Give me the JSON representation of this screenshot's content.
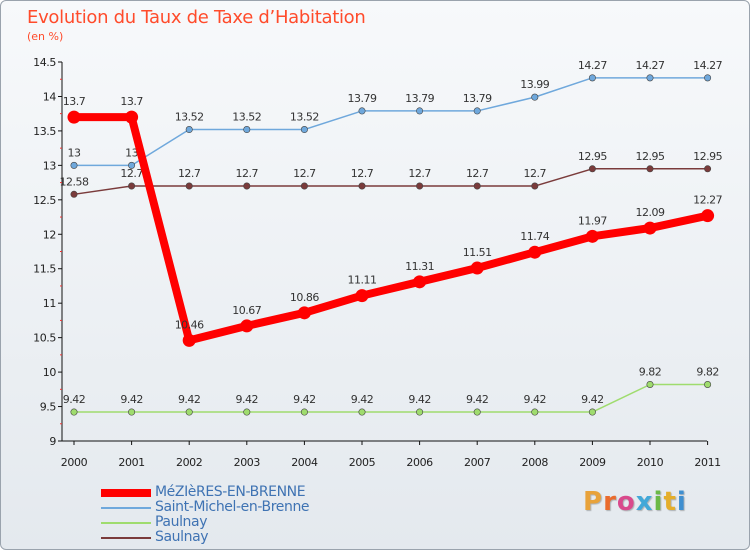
{
  "header": {
    "title": "Evolution du Taux de Taxe d’Habitation",
    "subtitle": "(en %)"
  },
  "brand": {
    "text": "Proxiti",
    "colors": [
      "#e8a23a",
      "#ea6b2d",
      "#d94a8c",
      "#43a8d8",
      "#6bb946",
      "#e4ae2b",
      "#3f8fd0"
    ]
  },
  "chart_data": {
    "type": "line",
    "categories": [
      "2000",
      "2001",
      "2002",
      "2003",
      "2004",
      "2005",
      "2006",
      "2007",
      "2008",
      "2009",
      "2010",
      "2011"
    ],
    "ylim": [
      9,
      14.5
    ],
    "yticks": [
      "9",
      "9.5",
      "10",
      "10.5",
      "11",
      "11.5",
      "12",
      "12.5",
      "13",
      "13.5",
      "14",
      "14.5"
    ],
    "grid": false,
    "legend_position": "bottom-left",
    "series": [
      {
        "name": "MéZIèRES-EN-BRENNE",
        "color": "#ff0000",
        "emphasis": true,
        "values": [
          13.7,
          13.7,
          10.46,
          10.67,
          10.86,
          11.11,
          11.31,
          11.51,
          11.74,
          11.97,
          12.09,
          12.27
        ],
        "labels": [
          "13.7",
          "13.7",
          "10.46",
          "10.67",
          "10.86",
          "11.11",
          "11.31",
          "11.51",
          "11.74",
          "11.97",
          "12.09",
          "12.27"
        ]
      },
      {
        "name": "Saint-Michel-en-Brenne",
        "color": "#6fa8dc",
        "emphasis": false,
        "values": [
          13,
          13,
          13.52,
          13.52,
          13.52,
          13.79,
          13.79,
          13.79,
          13.99,
          14.27,
          14.27,
          14.27
        ],
        "labels": [
          "13",
          "13",
          "13.52",
          "13.52",
          "13.52",
          "13.79",
          "13.79",
          "13.79",
          "13.99",
          "14.27",
          "14.27",
          "14.27"
        ]
      },
      {
        "name": "Paulnay",
        "color": "#9fdc6e",
        "emphasis": false,
        "values": [
          9.42,
          9.42,
          9.42,
          9.42,
          9.42,
          9.42,
          9.42,
          9.42,
          9.42,
          9.42,
          9.82,
          9.82
        ],
        "labels": [
          "9.42",
          "9.42",
          "9.42",
          "9.42",
          "9.42",
          "9.42",
          "9.42",
          "9.42",
          "9.42",
          "9.42",
          "9.82",
          "9.82"
        ]
      },
      {
        "name": "Saulnay",
        "color": "#7a3b3b",
        "emphasis": false,
        "values": [
          12.58,
          12.7,
          12.7,
          12.7,
          12.7,
          12.7,
          12.7,
          12.7,
          12.7,
          12.95,
          12.95,
          12.95
        ],
        "labels": [
          "12.58",
          "12.7",
          "12.7",
          "12.7",
          "12.7",
          "12.7",
          "12.7",
          "12.7",
          "12.7",
          "12.95",
          "12.95",
          "12.95"
        ]
      }
    ]
  }
}
